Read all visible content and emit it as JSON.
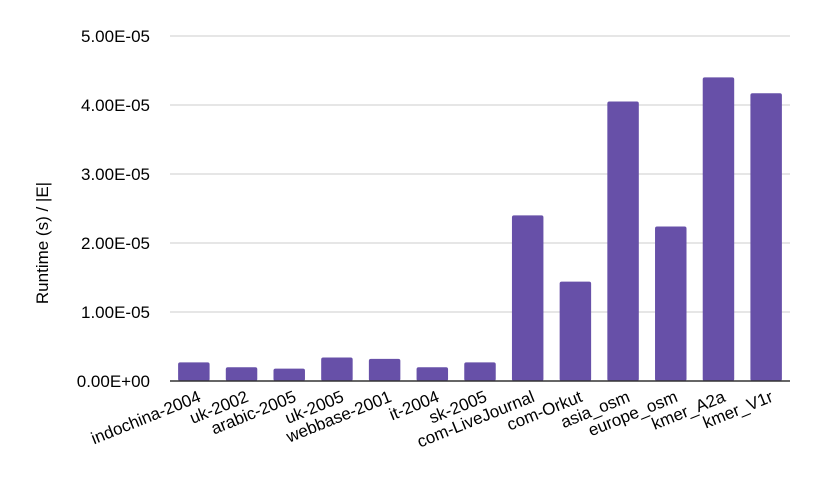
{
  "chart_data": {
    "type": "bar",
    "title": "",
    "xlabel": "",
    "ylabel": "Runtime (s) / |E|",
    "categories": [
      "indochina-2004",
      "uk-2002",
      "arabic-2005",
      "uk-2005",
      "webbase-2001",
      "it-2004",
      "sk-2005",
      "com-LiveJournal",
      "com-Orkut",
      "asia_osm",
      "europe_osm",
      "kmer_A2a",
      "kmer_V1r"
    ],
    "values": [
      2.7e-06,
      2e-06,
      1.8e-06,
      3.4e-06,
      3.2e-06,
      2e-06,
      2.7e-06,
      2.4e-05,
      1.44e-05,
      4.05e-05,
      2.24e-05,
      4.4e-05,
      4.17e-05
    ],
    "ylim": [
      0,
      5e-05
    ],
    "yticks": [
      0,
      1e-05,
      2e-05,
      3e-05,
      4e-05,
      5e-05
    ],
    "ytick_labels": [
      "0.00E+00",
      "1.00E-05",
      "2.00E-05",
      "3.00E-05",
      "4.00E-05",
      "5.00E-05"
    ],
    "grid": true,
    "legend": "none",
    "colors": {
      "bar": "#6750a8",
      "grid": "#cccccc",
      "axis": "#333333"
    }
  }
}
